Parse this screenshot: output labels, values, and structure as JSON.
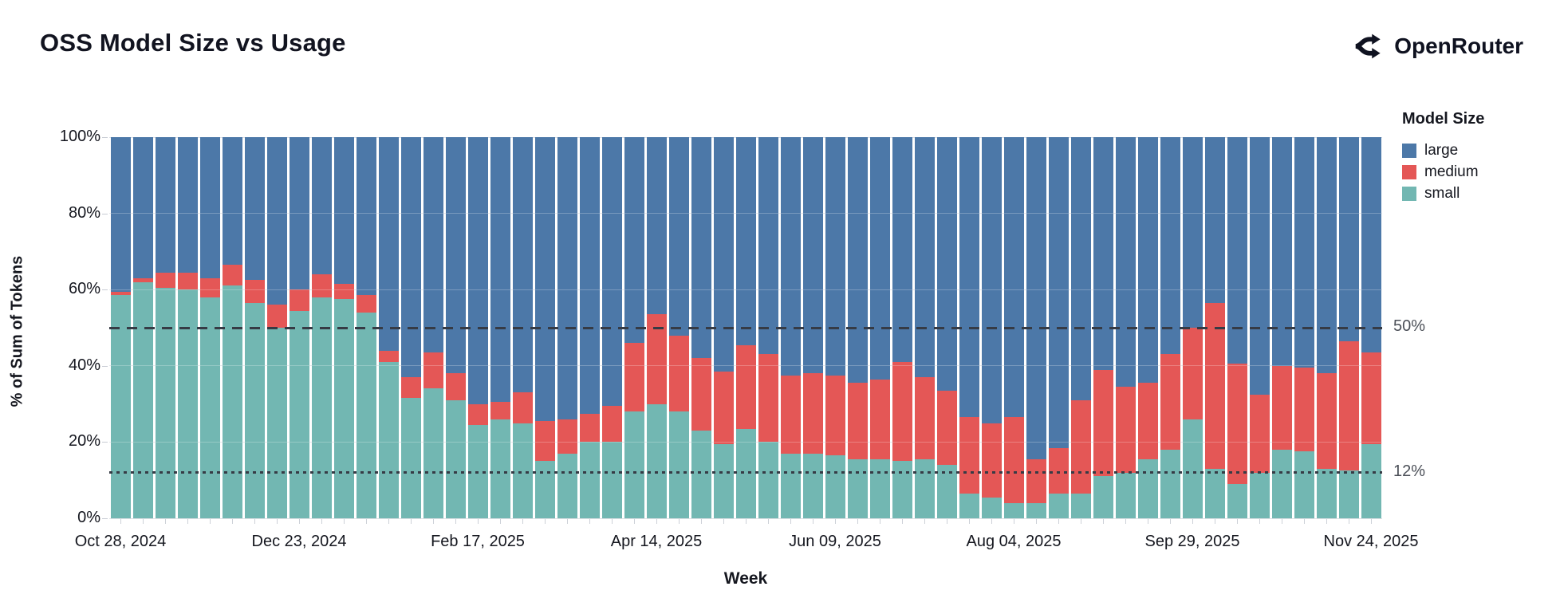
{
  "header": {
    "title": "OSS Model Size vs Usage",
    "brand": "OpenRouter"
  },
  "chart_data": {
    "type": "bar",
    "variant": "stacked_percent",
    "title": "OSS Model Size vs Usage",
    "xlabel": "Week",
    "ylabel": "% of Sum of Tokens",
    "ylim": [
      0,
      100
    ],
    "grid": true,
    "y_ticks": [
      {
        "value": 0,
        "label": "0%"
      },
      {
        "value": 20,
        "label": "20%"
      },
      {
        "value": 40,
        "label": "40%"
      },
      {
        "value": 60,
        "label": "60%"
      },
      {
        "value": 80,
        "label": "80%"
      },
      {
        "value": 100,
        "label": "100%"
      }
    ],
    "categories": [
      "2024-10-28",
      "2024-11-04",
      "2024-11-11",
      "2024-11-18",
      "2024-11-25",
      "2024-12-02",
      "2024-12-09",
      "2024-12-16",
      "2024-12-23",
      "2024-12-30",
      "2025-01-06",
      "2025-01-13",
      "2025-01-20",
      "2025-01-27",
      "2025-02-03",
      "2025-02-10",
      "2025-02-17",
      "2025-02-24",
      "2025-03-03",
      "2025-03-10",
      "2025-03-17",
      "2025-03-24",
      "2025-03-31",
      "2025-04-07",
      "2025-04-14",
      "2025-04-21",
      "2025-04-28",
      "2025-05-05",
      "2025-05-12",
      "2025-05-19",
      "2025-05-26",
      "2025-06-02",
      "2025-06-09",
      "2025-06-16",
      "2025-06-23",
      "2025-06-30",
      "2025-07-07",
      "2025-07-14",
      "2025-07-21",
      "2025-07-28",
      "2025-08-04",
      "2025-08-11",
      "2025-08-18",
      "2025-08-25",
      "2025-09-01",
      "2025-09-08",
      "2025-09-15",
      "2025-09-22",
      "2025-09-29",
      "2025-10-06",
      "2025-10-13",
      "2025-10-20",
      "2025-10-27",
      "2025-11-03",
      "2025-11-10",
      "2025-11-17",
      "2025-11-24"
    ],
    "x_tick_positions": [
      0,
      8,
      16,
      24,
      32,
      40,
      48,
      56
    ],
    "x_tick_labels": [
      "Oct 28, 2024",
      "Dec 23, 2024",
      "Feb 17, 2025",
      "Apr 14, 2025",
      "Jun 09, 2025",
      "Aug 04, 2025",
      "Sep 29, 2025",
      "Nov 24, 2025"
    ],
    "stack_order_bottom_to_top": [
      "small",
      "medium",
      "large"
    ],
    "series": [
      {
        "name": "small",
        "color": "#72b7b2",
        "values": [
          58.5,
          62,
          60.5,
          60,
          58,
          61,
          56.5,
          50,
          54.5,
          58,
          57.5,
          54,
          41,
          31.5,
          34,
          31,
          24.5,
          26,
          25,
          15,
          17,
          20,
          20,
          28,
          30,
          28,
          23,
          19.5,
          23.5,
          20,
          17,
          17,
          16.5,
          15.5,
          15.5,
          15,
          15.5,
          14,
          6.5,
          5.5,
          4,
          4,
          6.5,
          6.5,
          11,
          12,
          15.5,
          18,
          26,
          13,
          9,
          12,
          18,
          17.5,
          13,
          12.5,
          19.5
        ]
      },
      {
        "name": "medium",
        "color": "#e45756",
        "values": [
          1,
          1,
          4,
          4.5,
          5,
          5.5,
          6,
          6,
          5.5,
          6,
          4,
          4.5,
          3,
          5.5,
          9.5,
          7,
          5.5,
          4.5,
          8,
          10.5,
          9,
          7.5,
          9.5,
          18,
          23.5,
          20,
          19,
          19,
          22,
          23,
          20.5,
          21,
          21,
          20,
          21,
          26,
          21.5,
          19.5,
          20,
          19.5,
          22.5,
          11.5,
          12,
          24.5,
          28,
          22.5,
          20,
          25,
          24,
          43.5,
          31.5,
          20.5,
          22,
          22,
          25,
          34,
          24
        ]
      },
      {
        "name": "large",
        "color": "#4c78a8",
        "values": [
          40.5,
          37,
          35.5,
          35.5,
          37,
          33.5,
          37.5,
          44,
          40,
          36,
          38.5,
          41.5,
          56,
          63,
          56.5,
          62,
          70,
          69.5,
          67,
          74.5,
          74,
          72.5,
          70.5,
          54,
          46.5,
          52,
          58,
          61.5,
          54.5,
          57,
          62.5,
          62,
          62.5,
          64.5,
          63.5,
          59,
          63,
          66.5,
          73.5,
          75,
          73.5,
          84.5,
          81.5,
          69,
          61,
          65.5,
          64.5,
          57,
          50,
          43.5,
          59.5,
          67.5,
          60,
          60.5,
          62,
          53.5,
          56.5
        ]
      }
    ],
    "reference_lines": [
      {
        "value": 50,
        "label": "50%",
        "style": "dashed"
      },
      {
        "value": 12,
        "label": "12%",
        "style": "dotted"
      }
    ],
    "legend": {
      "title": "Model Size",
      "position": "right",
      "items": [
        {
          "label": "large",
          "color": "#4c78a8"
        },
        {
          "label": "medium",
          "color": "#e45756"
        },
        {
          "label": "small",
          "color": "#72b7b2"
        }
      ]
    }
  }
}
